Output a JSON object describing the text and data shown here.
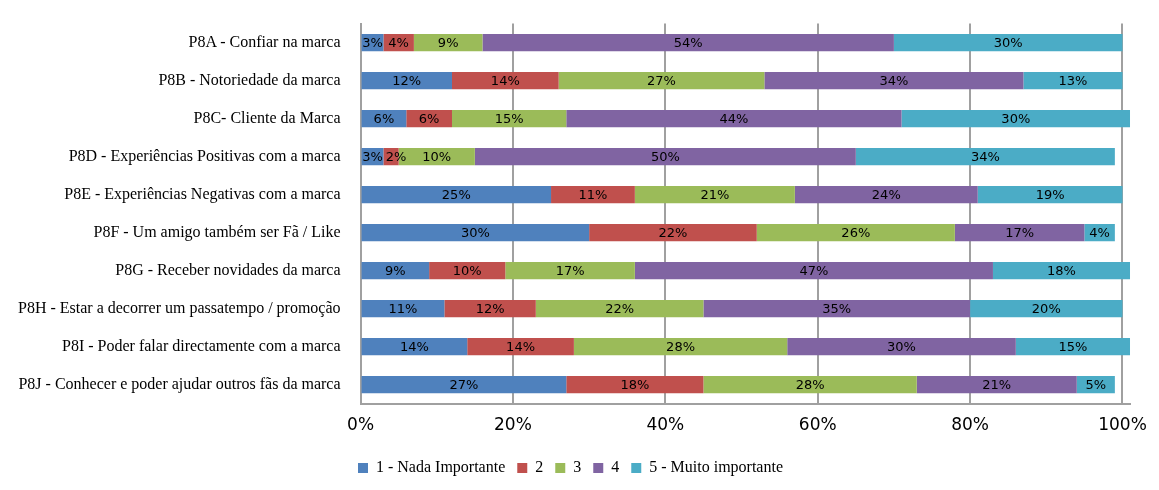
{
  "chart_data": {
    "type": "bar",
    "orientation": "horizontal",
    "stacked": true,
    "categories": [
      "P8A - Confiar na marca",
      "P8B - Notoriedade da marca",
      "P8C- Cliente da Marca",
      "P8D - Experiências Positivas com a marca",
      "P8E - Experiências Negativas com a marca",
      "P8F - Um amigo também ser Fã / Like",
      "P8G - Receber novidades da marca",
      "P8H - Estar a decorrer um passatempo / promoção",
      "P8I - Poder falar directamente com a marca",
      "P8J - Conhecer e poder ajudar outros fãs da marca"
    ],
    "series": [
      {
        "name": "1 - Nada Importante",
        "color": "#4f81bd",
        "values": [
          3,
          12,
          6,
          3,
          25,
          30,
          9,
          11,
          14,
          27
        ],
        "value_labels": [
          "3%",
          "12%",
          "6%",
          "3%",
          "25%",
          "30%",
          "9%",
          "11%",
          "14%",
          "27%"
        ]
      },
      {
        "name": "2",
        "color": "#c0504d",
        "values": [
          4,
          14,
          6,
          2,
          11,
          22,
          10,
          12,
          14,
          18
        ],
        "value_labels": [
          "4%",
          "14%",
          "6%",
          "2%",
          "11%",
          "22%",
          "10%",
          "12%",
          "14%",
          "18%"
        ]
      },
      {
        "name": "3",
        "color": "#9bbb59",
        "values": [
          9,
          27,
          15,
          10,
          21,
          26,
          17,
          22,
          28,
          28
        ],
        "value_labels": [
          "9%",
          "27%",
          "15%",
          "10%",
          "21%",
          "26%",
          "17%",
          "22%",
          "28%",
          "28%"
        ]
      },
      {
        "name": "4",
        "color": "#8064a2",
        "values": [
          54,
          34,
          44,
          50,
          24,
          17,
          47,
          35,
          30,
          21
        ],
        "value_labels": [
          "54%",
          "34%",
          "44%",
          "50%",
          "24%",
          "17%",
          "47%",
          "35%",
          "30%",
          "21%"
        ]
      },
      {
        "name": "5 - Muito importante",
        "color": "#4bacc6",
        "values": [
          30,
          13,
          30,
          34,
          19,
          4,
          18,
          20,
          15,
          5
        ],
        "value_labels": [
          "30%",
          "13%",
          "30%",
          "34%",
          "19%",
          "4%",
          "18%",
          "20%",
          "15%",
          "5%"
        ]
      }
    ],
    "xlim": [
      0,
      101
    ],
    "xticks": [
      {
        "value": 0,
        "label": "0%"
      },
      {
        "value": 20,
        "label": "20%"
      },
      {
        "value": 40,
        "label": "40%"
      },
      {
        "value": 60,
        "label": "60%"
      },
      {
        "value": 80,
        "label": "80%"
      },
      {
        "value": 100,
        "label": "100%"
      }
    ],
    "grid": "x",
    "legend": "bottom"
  }
}
